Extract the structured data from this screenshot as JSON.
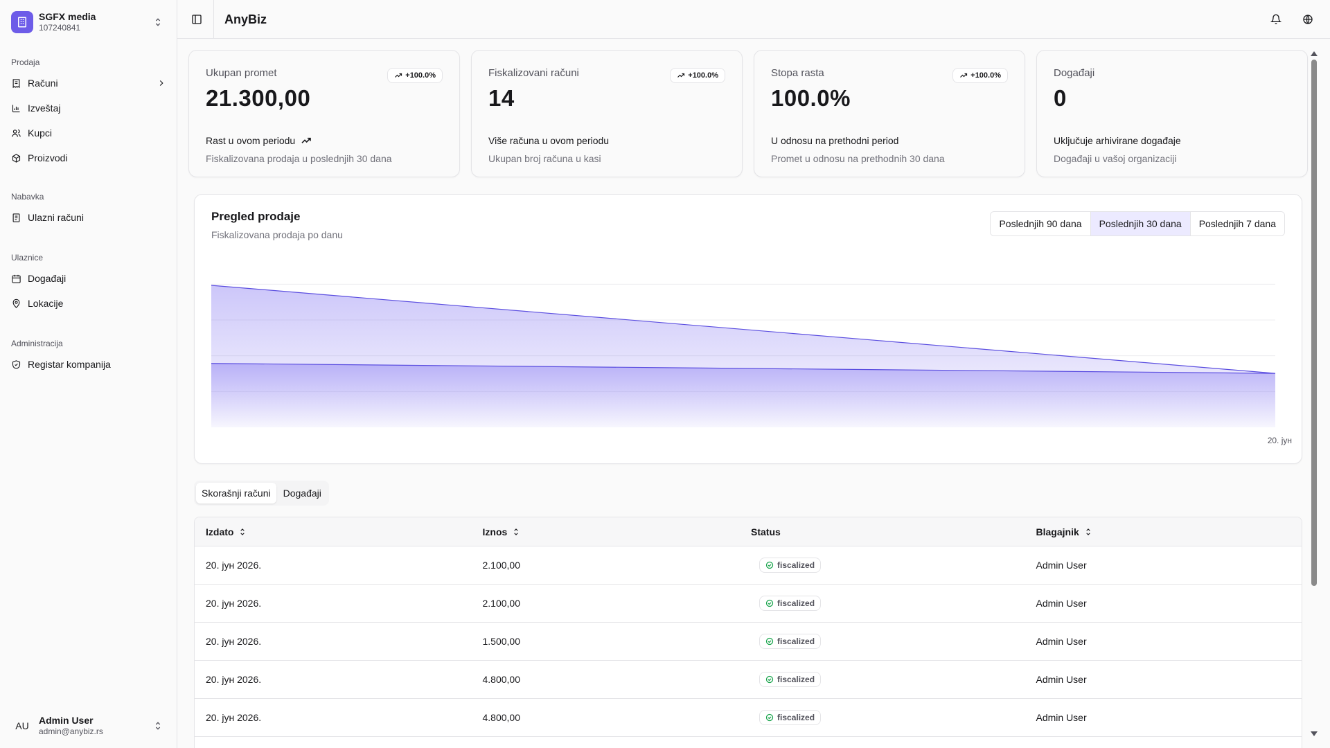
{
  "org": {
    "name": "SGFX media",
    "id": "107240841"
  },
  "sidebar": {
    "sections": [
      {
        "label": "Prodaja",
        "items": [
          {
            "label": "Računi",
            "icon": "receipt-icon",
            "chevron": true
          },
          {
            "label": "Izveštaj",
            "icon": "bar-chart-icon"
          },
          {
            "label": "Kupci",
            "icon": "users-icon"
          },
          {
            "label": "Proizvodi",
            "icon": "package-icon"
          }
        ]
      },
      {
        "label": "Nabavka",
        "items": [
          {
            "label": "Ulazni računi",
            "icon": "document-icon"
          }
        ]
      },
      {
        "label": "Ulaznice",
        "items": [
          {
            "label": "Događaji",
            "icon": "calendar-icon"
          },
          {
            "label": "Lokacije",
            "icon": "map-pin-icon"
          }
        ]
      },
      {
        "label": "Administracija",
        "items": [
          {
            "label": "Registar kompanija",
            "icon": "shield-check-icon"
          }
        ]
      }
    ]
  },
  "user": {
    "initials": "AU",
    "name": "Admin User",
    "email": "admin@anybiz.rs"
  },
  "header": {
    "title": "AnyBiz"
  },
  "cards": [
    {
      "label": "Ukupan promet",
      "value": "21.300,00",
      "badge": "+100.0%",
      "foot1": "Rast u ovom periodu",
      "foot1_icon": true,
      "foot2": "Fiskalizovana prodaja u poslednjih 30 dana"
    },
    {
      "label": "Fiskalizovani računi",
      "value": "14",
      "badge": "+100.0%",
      "foot1": "Više računa u ovom periodu",
      "foot1_icon": false,
      "foot2": "Ukupan broj računa u kasi"
    },
    {
      "label": "Stopa rasta",
      "value": "100.0%",
      "badge": "+100.0%",
      "foot1": "U odnosu na prethodni period",
      "foot1_icon": false,
      "foot2": "Promet u odnosu na prethodnih 30 dana"
    },
    {
      "label": "Događaji",
      "value": "0",
      "badge": "",
      "foot1": "Uključuje arhivirane događaje",
      "foot1_icon": false,
      "foot2": "Događaji u vašoj organizaciji"
    }
  ],
  "chart": {
    "title": "Pregled prodaje",
    "subtitle": "Fiskalizovana prodaja po danu",
    "ranges": [
      "Poslednjih 90 dana",
      "Poslednjih 30 dana",
      "Poslednjih 7 dana"
    ],
    "active_range": 1,
    "x_label": "20. јун",
    "colors": {
      "area": "#7b6cf0",
      "line": "#5b4ee0"
    }
  },
  "chart_data": {
    "type": "area",
    "x": [
      "start",
      "20. јун"
    ],
    "series": [
      {
        "values": [
          1.0,
          0.38
        ]
      },
      {
        "values": [
          0.45,
          0.38
        ]
      }
    ],
    "ylim": [
      0,
      1.2
    ],
    "grid": true,
    "xlabel": "",
    "ylabel": ""
  },
  "tabs": [
    "Skorašnji računi",
    "Događaji"
  ],
  "table": {
    "columns": [
      "Izdato",
      "Iznos",
      "Status",
      "Blagajnik"
    ],
    "rows": [
      {
        "date": "20. јун 2026.",
        "amount": "2.100,00",
        "status": "fiscalized",
        "cashier": "Admin User"
      },
      {
        "date": "20. јун 2026.",
        "amount": "2.100,00",
        "status": "fiscalized",
        "cashier": "Admin User"
      },
      {
        "date": "20. јун 2026.",
        "amount": "1.500,00",
        "status": "fiscalized",
        "cashier": "Admin User"
      },
      {
        "date": "20. јун 2026.",
        "amount": "4.800,00",
        "status": "fiscalized",
        "cashier": "Admin User"
      },
      {
        "date": "20. јун 2026.",
        "amount": "4.800,00",
        "status": "fiscalized",
        "cashier": "Admin User"
      }
    ]
  }
}
